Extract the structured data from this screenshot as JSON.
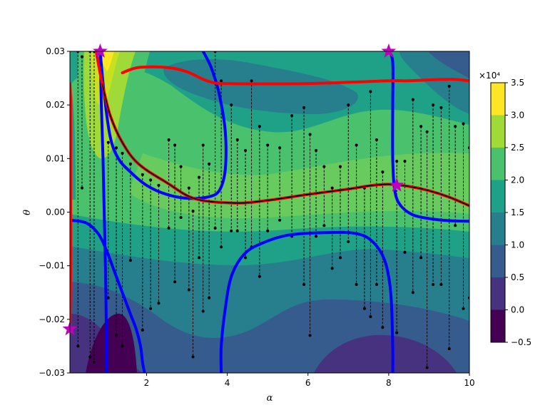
{
  "chart_data": {
    "type": "contour",
    "title": "",
    "xlabel": "α",
    "ylabel": "θ",
    "xlim": [
      0.1,
      10.0
    ],
    "ylim": [
      -0.03,
      0.03
    ],
    "x_ticks": [
      2,
      4,
      6,
      8,
      10
    ],
    "y_ticks": [
      -0.03,
      -0.02,
      -0.01,
      0.0,
      0.01,
      0.02,
      0.03
    ],
    "y_tick_labels": [
      "−0.03",
      "−0.02",
      "−0.01",
      "0.00",
      "0.01",
      "0.02",
      "0.03"
    ],
    "x_tick_labels": [
      "2",
      "4",
      "6",
      "8",
      "10"
    ],
    "colorbar": {
      "scale_label": "×10⁴",
      "levels": [
        -0.5,
        0.0,
        0.5,
        1.0,
        1.5,
        2.0,
        2.5,
        3.0,
        3.5
      ],
      "tick_labels": [
        "−0.5",
        "0.0",
        "0.5",
        "1.0",
        "1.5",
        "2.0",
        "2.5",
        "3.0",
        "3.5"
      ],
      "colors": [
        "#440154",
        "#46327e",
        "#365c8d",
        "#277f8e",
        "#1fa187",
        "#4ac16d",
        "#a0da39",
        "#fde725"
      ]
    },
    "red_curves": [
      [
        [
          0.1,
          -0.022
        ],
        [
          0.12,
          -0.01
        ],
        [
          0.12,
          0.0
        ],
        [
          0.12,
          0.01
        ],
        [
          0.12,
          0.02
        ],
        [
          0.1,
          0.024
        ]
      ],
      [
        [
          1.4,
          0.026
        ],
        [
          1.8,
          0.027
        ],
        [
          2.5,
          0.027
        ],
        [
          3.0,
          0.0262
        ],
        [
          3.5,
          0.0245
        ],
        [
          4.0,
          0.024
        ],
        [
          6.0,
          0.024
        ],
        [
          8.0,
          0.0245
        ],
        [
          8.5,
          0.0245
        ],
        [
          9.5,
          0.0248
        ],
        [
          10.0,
          0.0245
        ]
      ],
      [
        [
          0.75,
          0.03
        ],
        [
          0.9,
          0.024
        ],
        [
          1.1,
          0.018
        ],
        [
          1.4,
          0.013
        ],
        [
          1.8,
          0.009
        ],
        [
          2.5,
          0.0055
        ],
        [
          3.2,
          0.0025
        ],
        [
          4.2,
          0.0017
        ],
        [
          5.0,
          0.0022
        ],
        [
          6.0,
          0.0033
        ],
        [
          7.0,
          0.0043
        ],
        [
          7.5,
          0.0049
        ],
        [
          8.0,
          0.0052
        ],
        [
          8.5,
          0.0048
        ],
        [
          9.0,
          0.004
        ],
        [
          9.5,
          0.0028
        ],
        [
          10.0,
          0.0012
        ]
      ]
    ],
    "black_curve": [
      [
        0.9,
        0.024
      ],
      [
        1.1,
        0.018
      ],
      [
        1.4,
        0.013
      ],
      [
        1.8,
        0.009
      ],
      [
        2.5,
        0.0055
      ],
      [
        3.2,
        0.0025
      ],
      [
        4.2,
        0.0017
      ],
      [
        5.0,
        0.0022
      ],
      [
        6.0,
        0.0033
      ],
      [
        7.0,
        0.0043
      ],
      [
        7.5,
        0.0049
      ],
      [
        8.0,
        0.0052
      ],
      [
        8.5,
        0.0048
      ],
      [
        9.0,
        0.004
      ],
      [
        9.5,
        0.0028
      ],
      [
        10.0,
        0.0012
      ]
    ],
    "blue_curves": [
      [
        [
          0.85,
          0.03
        ],
        [
          0.88,
          0.02
        ],
        [
          0.92,
          0.01
        ],
        [
          0.95,
          0.0
        ],
        [
          0.98,
          -0.01
        ],
        [
          1.0,
          -0.02
        ],
        [
          1.0,
          -0.03
        ]
      ],
      [
        [
          0.85,
          0.03
        ],
        [
          0.95,
          0.022
        ],
        [
          1.1,
          0.014
        ],
        [
          1.3,
          0.01
        ],
        [
          1.6,
          0.0075
        ],
        [
          2.0,
          0.005
        ],
        [
          2.5,
          0.0033
        ],
        [
          3.0,
          0.0026
        ],
        [
          3.5,
          0.0028
        ],
        [
          3.8,
          0.004
        ],
        [
          3.95,
          0.008
        ],
        [
          3.95,
          0.015
        ],
        [
          3.8,
          0.022
        ],
        [
          3.6,
          0.027
        ],
        [
          3.4,
          0.03
        ]
      ],
      [
        [
          0.1,
          -0.0015
        ],
        [
          0.5,
          -0.002
        ],
        [
          0.8,
          -0.004
        ],
        [
          1.0,
          -0.007
        ],
        [
          1.2,
          -0.011
        ],
        [
          1.4,
          -0.015
        ],
        [
          1.6,
          -0.019
        ],
        [
          1.75,
          -0.022
        ],
        [
          1.85,
          -0.025
        ],
        [
          1.9,
          -0.028
        ],
        [
          1.95,
          -0.03
        ]
      ],
      [
        [
          3.85,
          -0.03
        ],
        [
          3.85,
          -0.025
        ],
        [
          3.95,
          -0.018
        ],
        [
          4.1,
          -0.012
        ],
        [
          4.4,
          -0.008
        ],
        [
          4.8,
          -0.006
        ],
        [
          5.5,
          -0.0043
        ],
        [
          6.5,
          -0.0038
        ],
        [
          7.2,
          -0.004
        ],
        [
          7.6,
          -0.0055
        ],
        [
          7.9,
          -0.009
        ],
        [
          8.05,
          -0.015
        ],
        [
          8.1,
          -0.025
        ],
        [
          8.1,
          -0.03
        ]
      ],
      [
        [
          8.0,
          0.03
        ],
        [
          8.1,
          0.028
        ],
        [
          8.1,
          0.02
        ],
        [
          8.1,
          0.01
        ],
        [
          8.15,
          0.004
        ],
        [
          8.3,
          0.0012
        ],
        [
          8.6,
          -0.0005
        ],
        [
          9.0,
          -0.0012
        ],
        [
          9.5,
          -0.0016
        ],
        [
          10.0,
          -0.0017
        ]
      ]
    ],
    "star_markers": [
      [
        0.85,
        0.03
      ],
      [
        8.0,
        0.03
      ],
      [
        8.2,
        0.005
      ],
      [
        0.1,
        -0.0218
      ]
    ],
    "dashed_drops": [
      [
        0.3,
        0.03,
        -0.025
      ],
      [
        0.4,
        0.029,
        0.0045
      ],
      [
        0.6,
        0.03,
        -0.027
      ],
      [
        0.7,
        0.03,
        -0.028
      ],
      [
        1.05,
        0.013,
        -0.016
      ],
      [
        1.25,
        0.012,
        -0.023
      ],
      [
        1.4,
        0.011,
        -0.025
      ],
      [
        1.6,
        0.009,
        -0.009
      ],
      [
        1.9,
        0.007,
        -0.022
      ],
      [
        2.1,
        0.006,
        -0.018
      ],
      [
        2.3,
        0.005,
        -0.017
      ],
      [
        2.55,
        0.0135,
        -0.003
      ],
      [
        2.7,
        0.0125,
        -0.013
      ],
      [
        2.85,
        0.0085,
        -0.001
      ],
      [
        3.05,
        0.0045,
        -0.0145
      ],
      [
        3.15,
        0.0002,
        -0.027
      ],
      [
        3.3,
        0.0065,
        -0.0085
      ],
      [
        3.4,
        0.0125,
        -0.0185
      ],
      [
        3.55,
        0.009,
        -0.016
      ],
      [
        3.7,
        0.03,
        -0.003
      ],
      [
        3.85,
        0.0245,
        -0.0065
      ],
      [
        4.1,
        0.02,
        -0.0035
      ],
      [
        4.25,
        0.0135,
        -0.0035
      ],
      [
        4.45,
        0.0115,
        -0.0085
      ],
      [
        4.6,
        0.0245,
        -0.0065
      ],
      [
        4.8,
        0.016,
        -0.012
      ],
      [
        5.0,
        0.0125,
        -0.0035
      ],
      [
        5.3,
        0.012,
        -0.0015
      ],
      [
        5.6,
        0.018,
        -0.0045
      ],
      [
        5.9,
        0.0195,
        -0.0135
      ],
      [
        6.05,
        0.0145,
        -0.023
      ],
      [
        6.2,
        0.0115,
        -0.0045
      ],
      [
        6.4,
        0.0085,
        -0.0025
      ],
      [
        6.6,
        0.0045,
        -0.0105
      ],
      [
        6.8,
        0.0085,
        -0.0085
      ],
      [
        7.0,
        0.02,
        -0.0055
      ],
      [
        7.2,
        0.0125,
        -0.0135
      ],
      [
        7.4,
        0.0045,
        -0.018
      ],
      [
        7.55,
        0.0225,
        -0.0195
      ],
      [
        7.7,
        0.0135,
        -0.0135
      ],
      [
        7.85,
        0.0075,
        -0.0215
      ],
      [
        8.2,
        0.0095,
        -0.0225
      ],
      [
        8.4,
        0.0095,
        -0.0075
      ],
      [
        8.6,
        0.021,
        -0.015
      ],
      [
        8.8,
        0.016,
        -0.0085
      ],
      [
        8.95,
        0.015,
        -0.029
      ],
      [
        9.1,
        0.02,
        -0.0135
      ],
      [
        9.3,
        0.0195,
        -0.0135
      ],
      [
        9.5,
        0.0235,
        -0.0255
      ],
      [
        9.65,
        0.016,
        -0.0025
      ],
      [
        9.85,
        0.0165,
        -0.018
      ],
      [
        10.0,
        0.012,
        -0.016
      ]
    ]
  }
}
